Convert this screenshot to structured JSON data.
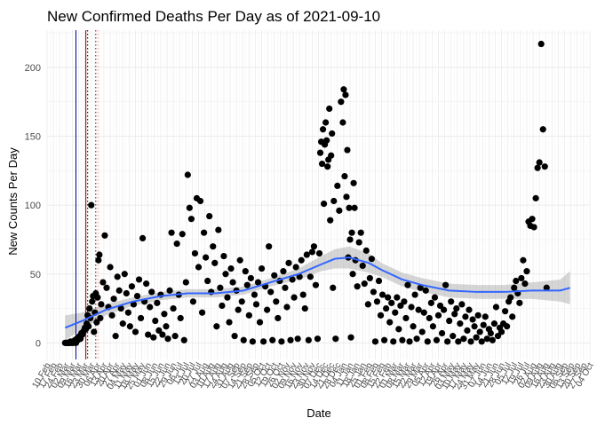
{
  "chart_data": {
    "type": "scatter",
    "title": "New Confirmed Deaths Per Day as of 2021-09-10",
    "xlabel": "Date",
    "ylabel": "New Counts Per Day",
    "ylim": [
      -12,
      227
    ],
    "yticks": [
      0,
      50,
      100,
      150,
      200
    ],
    "x_start": "2020-02-10",
    "x_end": "2021-10-04",
    "xtick_labels": [
      "10 Feb",
      "17 Feb",
      "24 Feb",
      "02 Mar",
      "09 Mar",
      "16 Mar",
      "23 Mar",
      "30 Mar",
      "06 Apr",
      "13 Apr",
      "20 Apr",
      "27 Apr",
      "04 May",
      "11 May",
      "18 May",
      "25 May",
      "01 Jun",
      "08 Jun",
      "15 Jun",
      "22 Jun",
      "29 Jun",
      "06 Jul",
      "13 Jul",
      "20 Jul",
      "27 Jul",
      "03 Aug",
      "10 Aug",
      "17 Aug",
      "24 Aug",
      "31 Aug",
      "07 Sep",
      "14 Sep",
      "21 Sep",
      "28 Sep",
      "05 Oct",
      "12 Oct",
      "19 Oct",
      "26 Oct",
      "02 Nov",
      "09 Nov",
      "16 Nov",
      "23 Nov",
      "30 Nov",
      "07 Dec",
      "14 Dec",
      "21 Dec",
      "28 Dec",
      "04 Jan",
      "11 Jan",
      "18 Jan",
      "25 Jan",
      "01 Feb",
      "08 Feb",
      "15 Feb",
      "22 Feb",
      "01 Mar",
      "08 Mar",
      "15 Mar",
      "22 Mar",
      "29 Mar",
      "05 Apr",
      "12 Apr",
      "19 Apr",
      "26 Apr",
      "03 May",
      "10 May",
      "17 May",
      "24 May",
      "31 May",
      "07 Jun",
      "14 Jun",
      "21 Jun",
      "28 Jun",
      "05 Jul",
      "12 Jul",
      "19 Jul",
      "26 Jul",
      "02 Aug",
      "09 Aug",
      "16 Aug",
      "23 Aug",
      "30 Aug",
      "06 Sep",
      "13 Sep",
      "20 Sep",
      "27 Sep",
      "04 Oct"
    ],
    "grid": true,
    "vlines": [
      {
        "date": "2020-03-13",
        "color": "#00008b",
        "style": "solid"
      },
      {
        "date": "2020-03-24",
        "color": "#8b0000",
        "style": "solid"
      },
      {
        "date": "2020-03-26",
        "color": "#000000",
        "style": "dotted"
      },
      {
        "date": "2020-04-04",
        "color": "#8b0000",
        "style": "dotted"
      },
      {
        "date": "2020-04-07",
        "color": "#e6b0b0",
        "style": "dotted"
      }
    ],
    "colors": {
      "points": "#000000",
      "smooth_line": "#3366ff",
      "ribbon": "#999999"
    },
    "smooth": {
      "dates": [
        "2020-03-01",
        "2020-03-20",
        "2020-04-15",
        "2020-05-15",
        "2020-06-15",
        "2020-07-15",
        "2020-08-15",
        "2020-09-15",
        "2020-10-15",
        "2020-11-15",
        "2020-12-10",
        "2020-12-25",
        "2021-01-10",
        "2021-02-01",
        "2021-02-15",
        "2021-03-10",
        "2021-04-01",
        "2021-05-01",
        "2021-06-01",
        "2021-07-01",
        "2021-08-01",
        "2021-09-01",
        "2021-09-12"
      ],
      "values": [
        11,
        16,
        24,
        30,
        34,
        36,
        36,
        38,
        44,
        50,
        57,
        61,
        62,
        58,
        53,
        46,
        42,
        38,
        37,
        37,
        38,
        38,
        40
      ],
      "lower": [
        2,
        10,
        20,
        27,
        31,
        33,
        33,
        35,
        41,
        46,
        52,
        54,
        54,
        51,
        48,
        41,
        37,
        33,
        32,
        32,
        32,
        30,
        28
      ],
      "upper": [
        20,
        22,
        28,
        33,
        37,
        39,
        39,
        41,
        47,
        54,
        63,
        68,
        70,
        65,
        58,
        51,
        47,
        43,
        42,
        42,
        44,
        46,
        52
      ]
    },
    "points": [
      [
        "2020-03-01",
        0
      ],
      [
        "2020-03-02",
        0
      ],
      [
        "2020-03-03",
        0
      ],
      [
        "2020-03-04",
        0
      ],
      [
        "2020-03-05",
        0
      ],
      [
        "2020-03-06",
        0
      ],
      [
        "2020-03-07",
        1
      ],
      [
        "2020-03-08",
        0
      ],
      [
        "2020-03-09",
        1
      ],
      [
        "2020-03-10",
        0
      ],
      [
        "2020-03-11",
        1
      ],
      [
        "2020-03-12",
        2
      ],
      [
        "2020-03-13",
        0
      ],
      [
        "2020-03-14",
        3
      ],
      [
        "2020-03-15",
        2
      ],
      [
        "2020-03-16",
        4
      ],
      [
        "2020-03-17",
        5
      ],
      [
        "2020-03-18",
        3
      ],
      [
        "2020-03-19",
        7
      ],
      [
        "2020-03-20",
        6
      ],
      [
        "2020-03-21",
        8
      ],
      [
        "2020-03-22",
        9
      ],
      [
        "2020-03-23",
        11
      ],
      [
        "2020-03-24",
        10
      ],
      [
        "2020-03-25",
        14
      ],
      [
        "2020-03-26",
        20
      ],
      [
        "2020-03-27",
        12
      ],
      [
        "2020-03-28",
        25
      ],
      [
        "2020-03-29",
        18
      ],
      [
        "2020-03-30",
        100
      ],
      [
        "2020-03-31",
        30
      ],
      [
        "2020-04-01",
        34
      ],
      [
        "2020-04-02",
        8
      ],
      [
        "2020-04-03",
        22
      ],
      [
        "2020-04-04",
        36
      ],
      [
        "2020-04-05",
        15
      ],
      [
        "2020-04-06",
        33
      ],
      [
        "2020-04-07",
        60
      ],
      [
        "2020-04-08",
        64
      ],
      [
        "2020-04-09",
        18
      ],
      [
        "2020-04-10",
        28
      ],
      [
        "2020-04-12",
        44
      ],
      [
        "2020-04-14",
        78
      ],
      [
        "2020-04-16",
        40
      ],
      [
        "2020-04-18",
        26
      ],
      [
        "2020-04-20",
        55
      ],
      [
        "2020-04-22",
        20
      ],
      [
        "2020-04-24",
        32
      ],
      [
        "2020-04-26",
        5
      ],
      [
        "2020-04-28",
        48
      ],
      [
        "2020-04-30",
        38
      ],
      [
        "2020-05-02",
        25
      ],
      [
        "2020-05-04",
        14
      ],
      [
        "2020-05-06",
        50
      ],
      [
        "2020-05-08",
        36
      ],
      [
        "2020-05-10",
        22
      ],
      [
        "2020-05-12",
        12
      ],
      [
        "2020-05-14",
        41
      ],
      [
        "2020-05-16",
        28
      ],
      [
        "2020-05-18",
        8
      ],
      [
        "2020-05-20",
        34
      ],
      [
        "2020-05-22",
        46
      ],
      [
        "2020-05-24",
        18
      ],
      [
        "2020-05-26",
        76
      ],
      [
        "2020-05-28",
        30
      ],
      [
        "2020-05-30",
        43
      ],
      [
        "2020-06-01",
        6
      ],
      [
        "2020-06-03",
        26
      ],
      [
        "2020-06-05",
        37
      ],
      [
        "2020-06-07",
        4
      ],
      [
        "2020-06-09",
        16
      ],
      [
        "2020-06-11",
        29
      ],
      [
        "2020-06-13",
        9
      ],
      [
        "2020-06-15",
        35
      ],
      [
        "2020-06-17",
        6
      ],
      [
        "2020-06-19",
        21
      ],
      [
        "2020-06-21",
        12
      ],
      [
        "2020-06-23",
        3
      ],
      [
        "2020-06-25",
        38
      ],
      [
        "2020-06-27",
        80
      ],
      [
        "2020-06-29",
        25
      ],
      [
        "2020-07-01",
        5
      ],
      [
        "2020-07-03",
        72
      ],
      [
        "2020-07-05",
        35
      ],
      [
        "2020-07-07",
        18
      ],
      [
        "2020-07-09",
        79
      ],
      [
        "2020-07-11",
        2
      ],
      [
        "2020-07-13",
        44
      ],
      [
        "2020-07-15",
        122
      ],
      [
        "2020-07-17",
        98
      ],
      [
        "2020-07-19",
        90
      ],
      [
        "2020-07-21",
        30
      ],
      [
        "2020-07-23",
        65
      ],
      [
        "2020-07-25",
        105
      ],
      [
        "2020-07-27",
        55
      ],
      [
        "2020-07-29",
        103
      ],
      [
        "2020-07-31",
        22
      ],
      [
        "2020-08-02",
        80
      ],
      [
        "2020-08-04",
        62
      ],
      [
        "2020-08-06",
        45
      ],
      [
        "2020-08-08",
        92
      ],
      [
        "2020-08-10",
        37
      ],
      [
        "2020-08-12",
        70
      ],
      [
        "2020-08-14",
        58
      ],
      [
        "2020-08-16",
        12
      ],
      [
        "2020-08-18",
        82
      ],
      [
        "2020-08-20",
        40
      ],
      [
        "2020-08-22",
        27
      ],
      [
        "2020-08-24",
        63
      ],
      [
        "2020-08-26",
        50
      ],
      [
        "2020-08-28",
        33
      ],
      [
        "2020-08-30",
        15
      ],
      [
        "2020-09-01",
        54
      ],
      [
        "2020-09-03",
        44
      ],
      [
        "2020-09-05",
        5
      ],
      [
        "2020-09-07",
        38
      ],
      [
        "2020-09-09",
        24
      ],
      [
        "2020-09-11",
        60
      ],
      [
        "2020-09-13",
        30
      ],
      [
        "2020-09-15",
        2
      ],
      [
        "2020-09-17",
        52
      ],
      [
        "2020-09-19",
        42
      ],
      [
        "2020-09-21",
        20
      ],
      [
        "2020-09-23",
        47
      ],
      [
        "2020-09-25",
        1
      ],
      [
        "2020-09-27",
        35
      ],
      [
        "2020-09-29",
        28
      ],
      [
        "2020-10-01",
        44
      ],
      [
        "2020-10-03",
        15
      ],
      [
        "2020-10-05",
        54
      ],
      [
        "2020-10-07",
        1
      ],
      [
        "2020-10-09",
        41
      ],
      [
        "2020-10-11",
        24
      ],
      [
        "2020-10-13",
        70
      ],
      [
        "2020-10-15",
        37
      ],
      [
        "2020-10-17",
        2
      ],
      [
        "2020-10-19",
        49
      ],
      [
        "2020-10-21",
        30
      ],
      [
        "2020-10-23",
        18
      ],
      [
        "2020-10-25",
        45
      ],
      [
        "2020-10-27",
        1
      ],
      [
        "2020-10-29",
        52
      ],
      [
        "2020-10-31",
        40
      ],
      [
        "2020-11-02",
        26
      ],
      [
        "2020-11-04",
        58
      ],
      [
        "2020-11-06",
        2
      ],
      [
        "2020-11-08",
        46
      ],
      [
        "2020-11-10",
        33
      ],
      [
        "2020-11-12",
        55
      ],
      [
        "2020-11-14",
        3
      ],
      [
        "2020-11-16",
        48
      ],
      [
        "2020-11-18",
        60
      ],
      [
        "2020-11-20",
        35
      ],
      [
        "2020-11-22",
        25
      ],
      [
        "2020-11-24",
        64
      ],
      [
        "2020-11-26",
        2
      ],
      [
        "2020-11-28",
        48
      ],
      [
        "2020-11-30",
        66
      ],
      [
        "2020-12-02",
        70
      ],
      [
        "2020-12-04",
        42
      ],
      [
        "2020-12-06",
        3
      ],
      [
        "2020-12-08",
        65
      ],
      [
        "2020-12-09",
        138
      ],
      [
        "2020-12-10",
        146
      ],
      [
        "2020-12-11",
        130
      ],
      [
        "2020-12-12",
        155
      ],
      [
        "2020-12-13",
        101
      ],
      [
        "2020-12-14",
        144
      ],
      [
        "2020-12-15",
        160
      ],
      [
        "2020-12-16",
        147
      ],
      [
        "2020-12-17",
        128
      ],
      [
        "2020-12-18",
        133
      ],
      [
        "2020-12-19",
        170
      ],
      [
        "2020-12-20",
        89
      ],
      [
        "2020-12-21",
        136
      ],
      [
        "2020-12-22",
        152
      ],
      [
        "2020-12-23",
        40
      ],
      [
        "2020-12-24",
        103
      ],
      [
        "2020-12-26",
        3
      ],
      [
        "2020-12-28",
        114
      ],
      [
        "2020-12-30",
        96
      ],
      [
        "2021-01-01",
        175
      ],
      [
        "2021-01-03",
        160
      ],
      [
        "2021-01-04",
        184
      ],
      [
        "2021-01-05",
        121
      ],
      [
        "2021-01-06",
        180
      ],
      [
        "2021-01-07",
        106
      ],
      [
        "2021-01-08",
        140
      ],
      [
        "2021-01-09",
        62
      ],
      [
        "2021-01-10",
        98
      ],
      [
        "2021-01-11",
        75
      ],
      [
        "2021-01-12",
        4
      ],
      [
        "2021-01-13",
        80
      ],
      [
        "2021-01-14",
        50
      ],
      [
        "2021-01-15",
        116
      ],
      [
        "2021-01-16",
        98
      ],
      [
        "2021-01-17",
        60
      ],
      [
        "2021-01-19",
        41
      ],
      [
        "2021-01-21",
        73
      ],
      [
        "2021-01-23",
        80
      ],
      [
        "2021-01-25",
        56
      ],
      [
        "2021-01-27",
        43
      ],
      [
        "2021-01-29",
        67
      ],
      [
        "2021-01-31",
        28
      ],
      [
        "2021-02-02",
        47
      ],
      [
        "2021-02-04",
        61
      ],
      [
        "2021-02-06",
        37
      ],
      [
        "2021-02-08",
        1
      ],
      [
        "2021-02-10",
        30
      ],
      [
        "2021-02-12",
        45
      ],
      [
        "2021-02-14",
        20
      ],
      [
        "2021-02-16",
        35
      ],
      [
        "2021-02-18",
        2
      ],
      [
        "2021-02-20",
        25
      ],
      [
        "2021-02-22",
        33
      ],
      [
        "2021-02-24",
        15
      ],
      [
        "2021-02-26",
        29
      ],
      [
        "2021-02-28",
        1
      ],
      [
        "2021-03-02",
        22
      ],
      [
        "2021-03-04",
        33
      ],
      [
        "2021-03-06",
        10
      ],
      [
        "2021-03-08",
        27
      ],
      [
        "2021-03-10",
        2
      ],
      [
        "2021-03-12",
        30
      ],
      [
        "2021-03-14",
        18
      ],
      [
        "2021-03-16",
        42
      ],
      [
        "2021-03-18",
        1
      ],
      [
        "2021-03-20",
        26
      ],
      [
        "2021-03-22",
        12
      ],
      [
        "2021-03-24",
        35
      ],
      [
        "2021-03-26",
        3
      ],
      [
        "2021-03-28",
        24
      ],
      [
        "2021-03-30",
        40
      ],
      [
        "2021-04-01",
        8
      ],
      [
        "2021-04-03",
        22
      ],
      [
        "2021-04-05",
        38
      ],
      [
        "2021-04-07",
        1
      ],
      [
        "2021-04-09",
        18
      ],
      [
        "2021-04-11",
        29
      ],
      [
        "2021-04-13",
        12
      ],
      [
        "2021-04-15",
        33
      ],
      [
        "2021-04-17",
        2
      ],
      [
        "2021-04-19",
        20
      ],
      [
        "2021-04-21",
        27
      ],
      [
        "2021-04-23",
        7
      ],
      [
        "2021-04-25",
        24
      ],
      [
        "2021-04-27",
        42
      ],
      [
        "2021-04-29",
        1
      ],
      [
        "2021-05-01",
        16
      ],
      [
        "2021-05-03",
        30
      ],
      [
        "2021-05-05",
        5
      ],
      [
        "2021-05-07",
        21
      ],
      [
        "2021-05-09",
        25
      ],
      [
        "2021-05-11",
        1
      ],
      [
        "2021-05-13",
        14
      ],
      [
        "2021-05-15",
        28
      ],
      [
        "2021-05-17",
        3
      ],
      [
        "2021-05-19",
        19
      ],
      [
        "2021-05-21",
        9
      ],
      [
        "2021-05-23",
        24
      ],
      [
        "2021-05-25",
        1
      ],
      [
        "2021-05-27",
        17
      ],
      [
        "2021-05-29",
        12
      ],
      [
        "2021-05-31",
        4
      ],
      [
        "2021-06-02",
        20
      ],
      [
        "2021-06-04",
        8
      ],
      [
        "2021-06-06",
        1
      ],
      [
        "2021-06-08",
        13
      ],
      [
        "2021-06-10",
        19
      ],
      [
        "2021-06-12",
        3
      ],
      [
        "2021-06-14",
        10
      ],
      [
        "2021-06-16",
        7
      ],
      [
        "2021-06-18",
        2
      ],
      [
        "2021-06-20",
        14
      ],
      [
        "2021-06-22",
        26
      ],
      [
        "2021-06-24",
        5
      ],
      [
        "2021-06-26",
        11
      ],
      [
        "2021-06-28",
        8
      ],
      [
        "2021-06-30",
        14
      ],
      [
        "2021-07-02",
        23
      ],
      [
        "2021-07-04",
        12
      ],
      [
        "2021-07-06",
        30
      ],
      [
        "2021-07-08",
        33
      ],
      [
        "2021-07-10",
        19
      ],
      [
        "2021-07-12",
        40
      ],
      [
        "2021-07-14",
        45
      ],
      [
        "2021-07-16",
        36
      ],
      [
        "2021-07-18",
        29
      ],
      [
        "2021-07-20",
        47
      ],
      [
        "2021-07-22",
        60
      ],
      [
        "2021-07-24",
        43
      ],
      [
        "2021-07-26",
        52
      ],
      [
        "2021-07-28",
        88
      ],
      [
        "2021-07-30",
        85
      ],
      [
        "2021-08-01",
        90
      ],
      [
        "2021-08-03",
        84
      ],
      [
        "2021-08-05",
        105
      ],
      [
        "2021-08-07",
        127
      ],
      [
        "2021-08-09",
        131
      ],
      [
        "2021-08-11",
        217
      ],
      [
        "2021-08-13",
        155
      ],
      [
        "2021-08-15",
        128
      ],
      [
        "2021-08-17",
        40
      ]
    ]
  }
}
